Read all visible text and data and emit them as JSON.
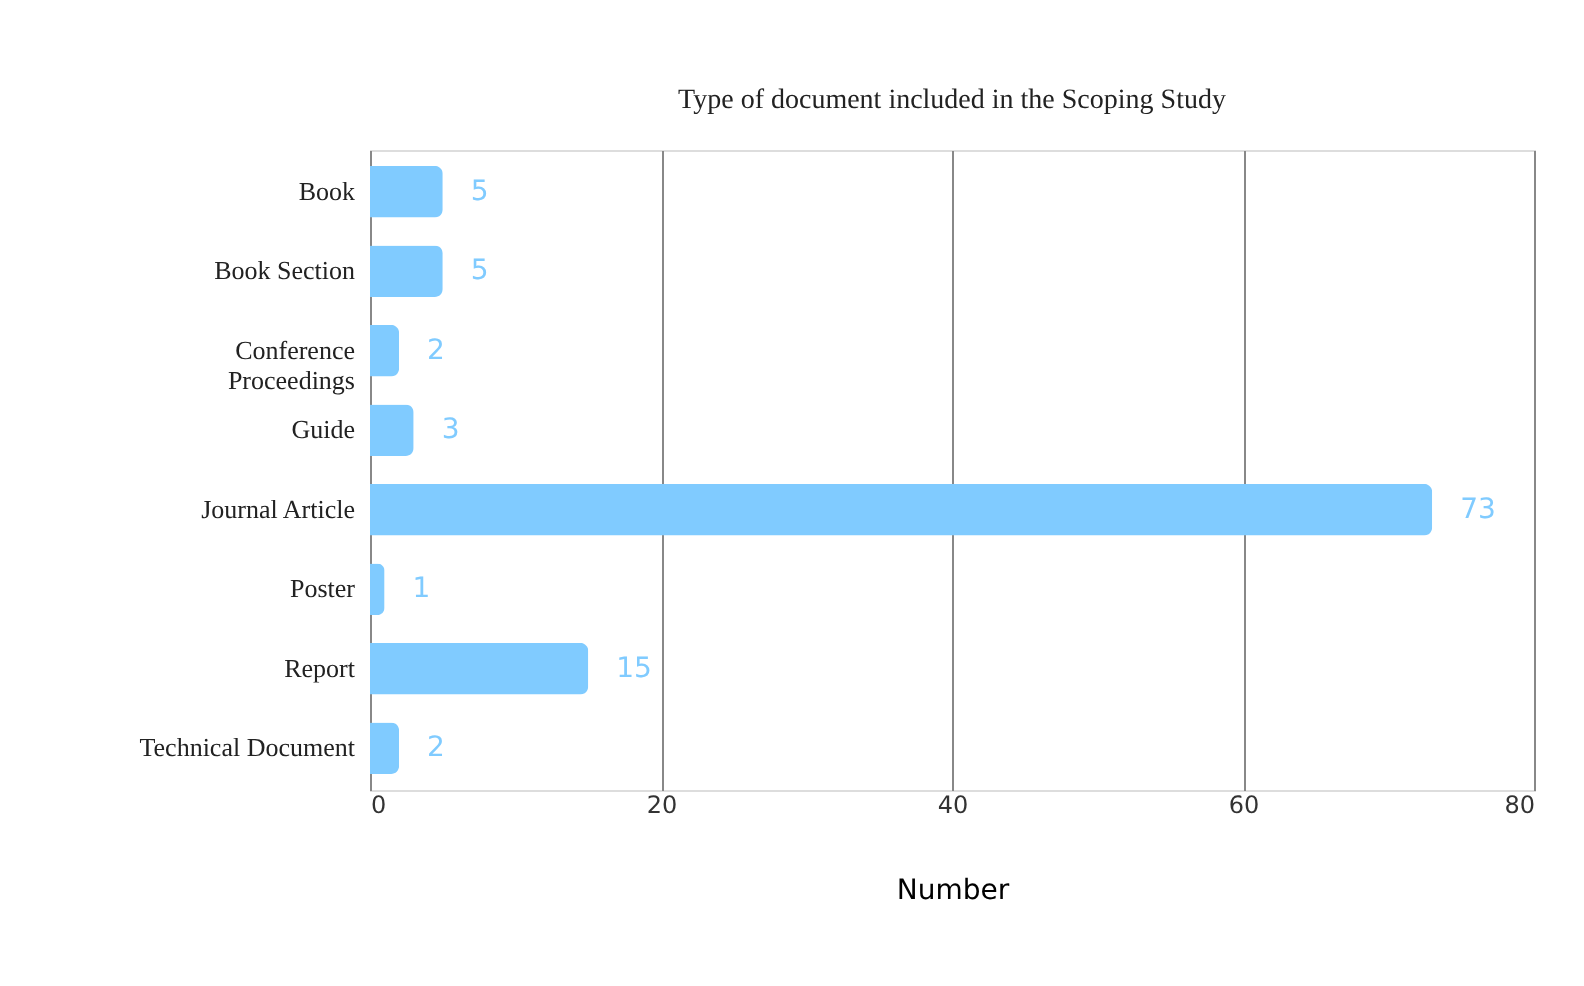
{
  "chart_data": {
    "type": "bar",
    "orientation": "horizontal",
    "title": "Type of document included in the Scoping Study",
    "xlabel": "Number",
    "categories": [
      "Book",
      "Book Section",
      "Conference Proceedings",
      "Guide",
      "Journal Article",
      "Poster",
      "Report",
      "Technical Document"
    ],
    "values": [
      5,
      5,
      2,
      3,
      73,
      1,
      15,
      2
    ],
    "color": "#80cbff",
    "xlim": [
      0,
      80
    ],
    "xticks": [
      0,
      20,
      40,
      60,
      80
    ],
    "grid": "x",
    "data_labels": true
  }
}
